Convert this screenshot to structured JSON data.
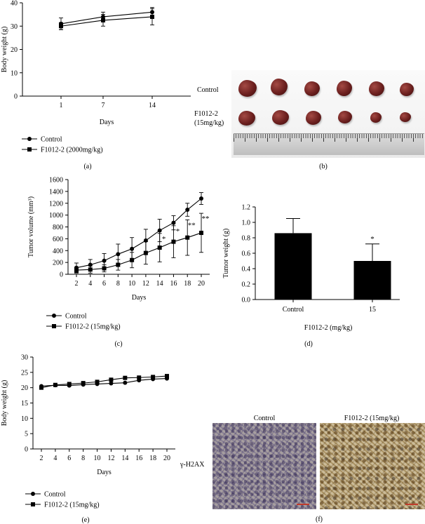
{
  "panels": {
    "a": {
      "label": "(a)"
    },
    "b": {
      "label": "(b)",
      "row_labels": [
        "Control",
        "F1012-2",
        "(15mg/kg)"
      ]
    },
    "c": {
      "label": "(c)"
    },
    "d": {
      "label": "(d)"
    },
    "e": {
      "label": "(e)"
    },
    "f": {
      "label": "(f)",
      "col_labels": [
        "Control",
        "F1012-2 (15mg/kg)"
      ],
      "row_label": "γ-H2AX"
    }
  },
  "chart_data": [
    {
      "id": "a",
      "type": "line",
      "xlabel": "Days",
      "ylabel": "Body weight (g)",
      "x": [
        1,
        7,
        14
      ],
      "ylim": [
        0,
        40
      ],
      "yticks": [
        0,
        10,
        20,
        30,
        40
      ],
      "series": [
        {
          "name": "Control",
          "marker": "circle",
          "values": [
            31,
            34,
            36
          ],
          "errors": [
            2.5,
            2,
            2
          ]
        },
        {
          "name": "F1012-2 (2000mg/kg)",
          "marker": "square",
          "values": [
            30,
            32.5,
            34
          ],
          "errors": [
            1.5,
            2.5,
            3.5
          ]
        }
      ]
    },
    {
      "id": "c",
      "type": "line",
      "xlabel": "Days",
      "ylabel": "Tumor volume (mm³)",
      "x": [
        2,
        4,
        6,
        8,
        10,
        12,
        14,
        16,
        18,
        20
      ],
      "ylim": [
        0,
        1600
      ],
      "yticks": [
        0,
        200,
        400,
        600,
        800,
        1000,
        1200,
        1400,
        1600
      ],
      "series": [
        {
          "name": "Control",
          "marker": "circle",
          "values": [
            110,
            160,
            230,
            340,
            430,
            570,
            740,
            870,
            1090,
            1280
          ],
          "errors": [
            80,
            90,
            120,
            170,
            190,
            190,
            190,
            120,
            110,
            100
          ]
        },
        {
          "name": "F1012-2 (15mg/kg)",
          "marker": "square",
          "values": [
            70,
            80,
            100,
            160,
            240,
            360,
            450,
            550,
            620,
            700
          ],
          "errors": [
            50,
            60,
            60,
            90,
            130,
            190,
            240,
            270,
            300,
            330
          ]
        }
      ],
      "annotations": [
        {
          "x": 14,
          "text": "*"
        },
        {
          "x": 16,
          "text": "*"
        },
        {
          "x": 18,
          "text": "**"
        },
        {
          "x": 20,
          "text": "**"
        }
      ]
    },
    {
      "id": "d",
      "type": "bar",
      "xlabel": "F1012-2 (mg/kg)",
      "ylabel": "Tumor weight (g)",
      "categories": [
        "Control",
        "15"
      ],
      "values": [
        0.86,
        0.5
      ],
      "errors": [
        0.19,
        0.22
      ],
      "ylim": [
        0,
        1.2
      ],
      "yticks": [
        "0.0",
        "0.2",
        "0.4",
        "0.6",
        "0.8",
        "1.0",
        "1.2"
      ],
      "annotations": [
        {
          "category": "15",
          "text": "*"
        }
      ]
    },
    {
      "id": "e",
      "type": "line",
      "xlabel": "Days",
      "ylabel": "Body weight (g)",
      "x": [
        2,
        4,
        6,
        8,
        10,
        12,
        14,
        16,
        18,
        20
      ],
      "ylim": [
        0,
        30
      ],
      "yticks": [
        0,
        5,
        10,
        15,
        20,
        25,
        30
      ],
      "series": [
        {
          "name": "Control",
          "marker": "circle",
          "values": [
            20.5,
            20.8,
            20.7,
            21.0,
            21.2,
            21.4,
            21.6,
            22.4,
            22.8,
            23.0
          ]
        },
        {
          "name": "F1012-2 (15mg/kg)",
          "marker": "square",
          "values": [
            20.0,
            20.9,
            21.2,
            21.5,
            21.9,
            22.6,
            23.2,
            23.3,
            23.5,
            23.8
          ]
        }
      ]
    }
  ]
}
